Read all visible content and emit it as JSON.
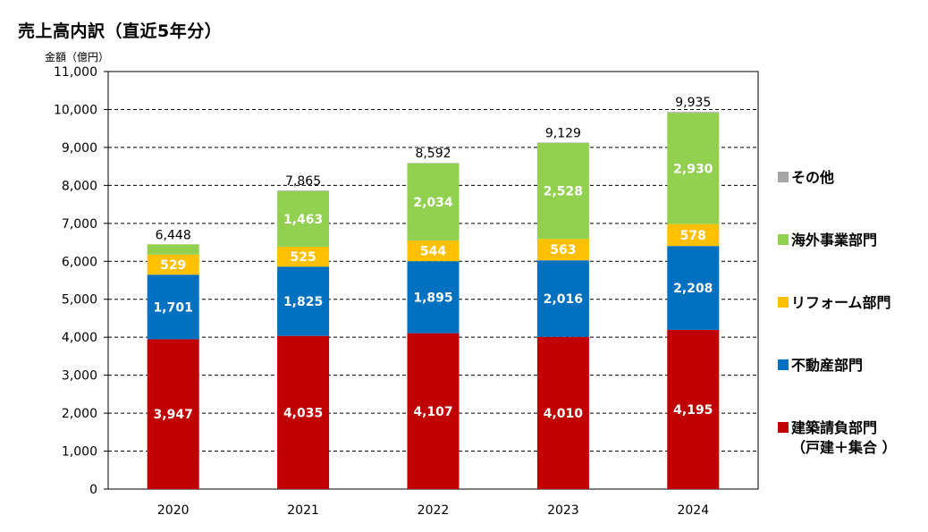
{
  "title": "売上高内訳（直近5年分）",
  "unit_label": "金額（億円）",
  "chart_data": {
    "type": "bar",
    "stacked": true,
    "categories": [
      "2020",
      "2021",
      "2022",
      "2023",
      "2024"
    ],
    "series": [
      {
        "name": "建築請負部門（戸建＋集合）",
        "color": "#c00000",
        "values": [
          3947,
          4035,
          4107,
          4010,
          4195
        ],
        "labels": [
          "3,947",
          "4,035",
          "4,107",
          "4,010",
          "4,195"
        ]
      },
      {
        "name": "不動産部門",
        "color": "#0070c0",
        "values": [
          1701,
          1825,
          1895,
          2016,
          2208
        ],
        "labels": [
          "1,701",
          "1,825",
          "1,895",
          "2,016",
          "2,208"
        ]
      },
      {
        "name": "リフォーム部門",
        "color": "#ffc000",
        "values": [
          529,
          525,
          544,
          563,
          578
        ],
        "labels": [
          "529",
          "525",
          "544",
          "563",
          "578"
        ]
      },
      {
        "name": "海外事業部門",
        "color": "#92d050",
        "values": [
          271,
          1463,
          2034,
          2528,
          2930
        ],
        "labels": [
          "",
          "1,463",
          "2,034",
          "2,528",
          "2,930"
        ]
      },
      {
        "name": "その他",
        "color": "#a6a6a6",
        "values": [
          0,
          17,
          12,
          12,
          24
        ],
        "labels": [
          "",
          "",
          "",
          "",
          ""
        ]
      }
    ],
    "totals": [
      6448,
      7865,
      8592,
      9129,
      9935
    ],
    "total_labels": [
      "6,448",
      "7,865",
      "8,592",
      "9,129",
      "9,935"
    ],
    "ylim": [
      0,
      11000
    ],
    "yticks": [
      "0",
      "1,000",
      "2,000",
      "3,000",
      "4,000",
      "5,000",
      "6,000",
      "7,000",
      "8,000",
      "9,000",
      "10,000",
      "11,000"
    ],
    "grid": true,
    "legend_position": "right"
  },
  "legend": [
    {
      "label": "その他",
      "color": "#a6a6a6"
    },
    {
      "label": "海外事業部門",
      "color": "#92d050"
    },
    {
      "label": "リフォーム部門",
      "color": "#ffc000"
    },
    {
      "label": "不動産部門",
      "color": "#0070c0"
    },
    {
      "label": "建築請負部門",
      "sub": "（戸建＋集合 ）",
      "color": "#c00000"
    }
  ]
}
